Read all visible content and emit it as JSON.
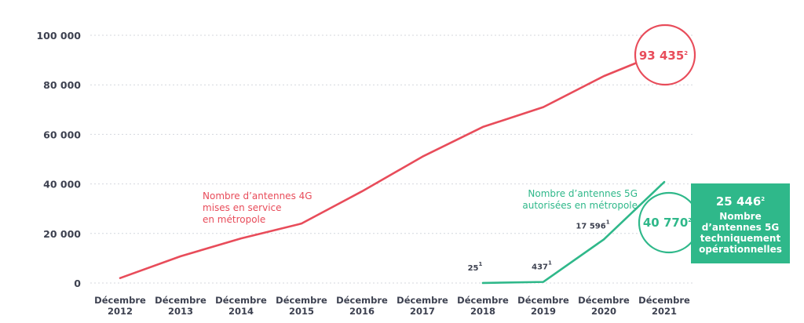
{
  "chart_data": {
    "type": "line",
    "categories": [
      [
        "Décembre",
        "2012"
      ],
      [
        "Décembre",
        "2013"
      ],
      [
        "Décembre",
        "2014"
      ],
      [
        "Décembre",
        "2015"
      ],
      [
        "Décembre",
        "2016"
      ],
      [
        "Décembre",
        "2017"
      ],
      [
        "Décembre",
        "2018"
      ],
      [
        "Décembre",
        "2019"
      ],
      [
        "Décembre",
        "2020"
      ],
      [
        "Décembre",
        "2021"
      ]
    ],
    "y_ticks": [
      "0",
      "20 000",
      "40 000",
      "60 000",
      "80 000",
      "100 000"
    ],
    "ylim": [
      0,
      100000
    ],
    "grid": true,
    "series": [
      {
        "name": [
          "Nombre d’antennes 4G",
          "mises en service",
          "en métropole"
        ],
        "color": "#e84c5a",
        "values": [
          2000,
          10800,
          18000,
          24000,
          37000,
          51000,
          63000,
          71000,
          83500,
          93435
        ]
      },
      {
        "name": [
          "Nombre d’antennes 5G",
          "autorisées en métropole"
        ],
        "color": "#2fb88a",
        "values": [
          null,
          null,
          null,
          null,
          null,
          null,
          25,
          437,
          17596,
          40770
        ]
      }
    ],
    "annotations": {
      "point_labels": [
        {
          "series": 1,
          "index": 6,
          "text": "25",
          "sup": "1"
        },
        {
          "series": 1,
          "index": 7,
          "text": "437",
          "sup": "1"
        },
        {
          "series": 1,
          "index": 8,
          "text": "17 596",
          "sup": "1"
        }
      ],
      "callout_4g": {
        "text": "93 435",
        "sup": "2"
      },
      "callout_5g": {
        "text": "40 770",
        "sup": "2"
      },
      "box": {
        "number": "25  446",
        "sup": "2",
        "lines": [
          "Nombre",
          "d’antennes 5G",
          "techniquement",
          "opérationnelles"
        ],
        "color": "#2fb88a"
      }
    }
  }
}
